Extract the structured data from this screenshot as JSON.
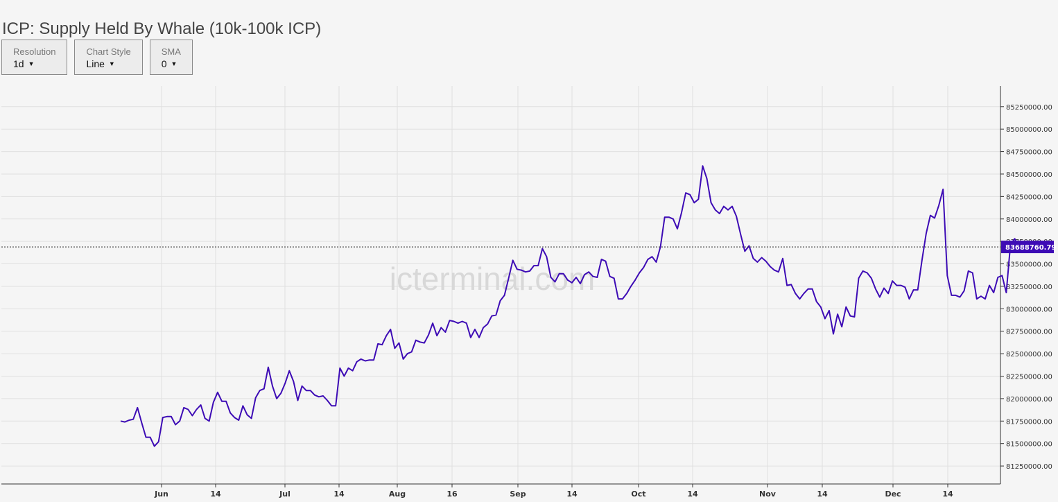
{
  "page": {
    "title": "ICP: Supply Held By Whale (10k-100k ICP)"
  },
  "controls": [
    {
      "name": "resolution-dropdown",
      "label": "Resolution",
      "value": "1d"
    },
    {
      "name": "chart-style-dropdown",
      "label": "Chart Style",
      "value": "Line"
    },
    {
      "name": "sma-dropdown",
      "label": "SMA",
      "value": "0"
    }
  ],
  "colors": {
    "line": "#3d0bb5",
    "price_tag": "#3d0bb5",
    "grid": "#e0e0e0",
    "background": "#f5f5f5"
  },
  "watermark": "icterminal.com",
  "chart_data": {
    "type": "line",
    "title": "ICP: Supply Held By Whale (10k-100k ICP)",
    "xlabel": "",
    "ylabel": "",
    "ylim": [
      81050000,
      85480000
    ],
    "x_tick_labels": [
      "Jun",
      "14",
      "Jul",
      "14",
      "Aug",
      "16",
      "Sep",
      "14",
      "Oct",
      "14",
      "Nov",
      "14",
      "Dec",
      "14"
    ],
    "y_tick_labels": [
      "81250000.00",
      "81500000.00",
      "81750000.00",
      "82000000.00",
      "82250000.00",
      "82500000.00",
      "82750000.00",
      "83000000.00",
      "83250000.00",
      "83500000.00",
      "83750000.00",
      "84000000.00",
      "84250000.00",
      "84500000.00",
      "84750000.00",
      "85000000.00",
      "85250000.00"
    ],
    "y_ticks": [
      81250000,
      81500000,
      81750000,
      82000000,
      82250000,
      82500000,
      82750000,
      83000000,
      83250000,
      83500000,
      83750000,
      84000000,
      84250000,
      84500000,
      84750000,
      85000000,
      85250000
    ],
    "grid": true,
    "last_value_label": "83688760.79",
    "last_value": 83688760.79,
    "series": [
      {
        "name": "",
        "start_date": "2022-05-24",
        "interval": "1d",
        "values": [
          81750000,
          81740000,
          81760000,
          81770000,
          81900000,
          81730000,
          81570000,
          81570000,
          81470000,
          81520000,
          81790000,
          81800000,
          81800000,
          81710000,
          81750000,
          81900000,
          81880000,
          81810000,
          81880000,
          81930000,
          81780000,
          81750000,
          81960000,
          82070000,
          81970000,
          81970000,
          81840000,
          81790000,
          81760000,
          81920000,
          81820000,
          81780000,
          82010000,
          82090000,
          82110000,
          82350000,
          82140000,
          82000000,
          82060000,
          82170000,
          82310000,
          82190000,
          81980000,
          82140000,
          82090000,
          82090000,
          82040000,
          82020000,
          82030000,
          81980000,
          81920000,
          81920000,
          82340000,
          82250000,
          82340000,
          82310000,
          82410000,
          82440000,
          82420000,
          82430000,
          82430000,
          82610000,
          82600000,
          82700000,
          82770000,
          82560000,
          82620000,
          82440000,
          82500000,
          82520000,
          82650000,
          82630000,
          82620000,
          82710000,
          82840000,
          82700000,
          82790000,
          82740000,
          82870000,
          82860000,
          82840000,
          82860000,
          82840000,
          82680000,
          82770000,
          82680000,
          82790000,
          82830000,
          82920000,
          82930000,
          83090000,
          83150000,
          83340000,
          83540000,
          83440000,
          83430000,
          83410000,
          83420000,
          83480000,
          83480000,
          83670000,
          83580000,
          83350000,
          83300000,
          83390000,
          83390000,
          83320000,
          83290000,
          83350000,
          83280000,
          83380000,
          83410000,
          83360000,
          83350000,
          83550000,
          83530000,
          83360000,
          83340000,
          83110000,
          83110000,
          83170000,
          83250000,
          83320000,
          83400000,
          83460000,
          83550000,
          83580000,
          83520000,
          83690000,
          84020000,
          84020000,
          84000000,
          83890000,
          84070000,
          84290000,
          84270000,
          84180000,
          84220000,
          84590000,
          84450000,
          84180000,
          84100000,
          84060000,
          84140000,
          84100000,
          84140000,
          84030000,
          83830000,
          83640000,
          83700000,
          83560000,
          83520000,
          83570000,
          83530000,
          83470000,
          83430000,
          83410000,
          83560000,
          83260000,
          83270000,
          83170000,
          83110000,
          83170000,
          83220000,
          83220000,
          83080000,
          83020000,
          82890000,
          82980000,
          82720000,
          82940000,
          82800000,
          83020000,
          82920000,
          82910000,
          83340000,
          83420000,
          83400000,
          83340000,
          83220000,
          83130000,
          83230000,
          83170000,
          83310000,
          83260000,
          83260000,
          83240000,
          83110000,
          83210000,
          83210000,
          83540000,
          83840000,
          84040000,
          84010000,
          84150000,
          84330000,
          83370000,
          83150000,
          83150000,
          83130000,
          83200000,
          83420000,
          83400000,
          83110000,
          83140000,
          83110000,
          83260000,
          83180000,
          83350000,
          83370000,
          83180000,
          83720000,
          83780000,
          83688760.79
        ]
      }
    ]
  }
}
